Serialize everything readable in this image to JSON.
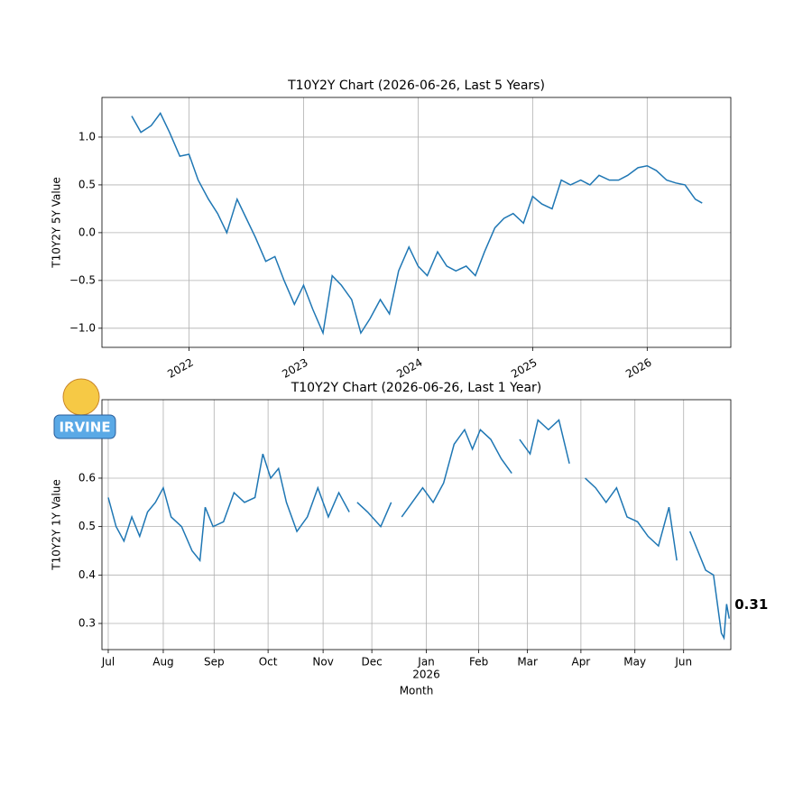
{
  "logo_text": "IRVINE",
  "chart_data": [
    {
      "type": "line",
      "title": "T10Y2Y Chart (2026-06-26, Last 5 Years)",
      "y_label": "T10Y2Y 5Y Value",
      "xlim": [
        2021.24,
        2026.73
      ],
      "xticks": [
        2022,
        2023,
        2024,
        2025,
        2026
      ],
      "ylim": [
        -1.2,
        1.415
      ],
      "yticks": [
        {
          "value": -1,
          "label": "−1.0"
        },
        {
          "value": -0.5,
          "label": "−0.5"
        },
        {
          "value": 0,
          "label": "0.0"
        },
        0.5,
        {
          "value": 1,
          "label": "1.0"
        }
      ],
      "grid": true,
      "x": [
        2021.5,
        2021.58,
        2021.67,
        2021.75,
        2021.83,
        2021.92,
        2022.0,
        2022.08,
        2022.17,
        2022.25,
        2022.33,
        2022.42,
        2022.5,
        2022.58,
        2022.67,
        2022.75,
        2022.83,
        2022.92,
        2023.0,
        2023.08,
        2023.17,
        2023.25,
        2023.33,
        2023.42,
        2023.5,
        2023.58,
        2023.67,
        2023.75,
        2023.83,
        2023.92,
        2024.0,
        2024.08,
        2024.17,
        2024.25,
        2024.33,
        2024.42,
        2024.5,
        2024.58,
        2024.67,
        2024.75,
        2024.83,
        2024.92,
        2025.0,
        2025.08,
        2025.17,
        2025.25,
        2025.33,
        2025.42,
        2025.5,
        2025.58,
        2025.67,
        2025.75,
        2025.83,
        2025.92,
        2026.0,
        2026.08,
        2026.17,
        2026.25,
        2026.33,
        2026.42,
        2026.48
      ],
      "series": [
        {
          "name": "T10Y2Y",
          "color": "#1f77b4",
          "values": [
            1.22,
            1.05,
            1.12,
            1.25,
            1.05,
            0.8,
            0.82,
            0.55,
            0.35,
            0.2,
            0.0,
            0.35,
            0.15,
            -0.05,
            -0.3,
            -0.25,
            -0.5,
            -0.75,
            -0.55,
            -0.8,
            -1.05,
            -0.45,
            -0.55,
            -0.7,
            -1.05,
            -0.9,
            -0.7,
            -0.85,
            -0.4,
            -0.15,
            -0.35,
            -0.45,
            -0.2,
            -0.35,
            -0.4,
            -0.35,
            -0.45,
            -0.2,
            0.05,
            0.15,
            0.2,
            0.1,
            0.38,
            0.3,
            0.25,
            0.55,
            0.5,
            0.55,
            0.5,
            0.6,
            0.55,
            0.55,
            0.6,
            0.68,
            0.7,
            0.65,
            0.55,
            0.52,
            0.5,
            0.35,
            0.31
          ]
        }
      ]
    },
    {
      "type": "line",
      "title": "T10Y2Y Chart (2026-06-26, Last 1 Year)",
      "y_label": "T10Y2Y 1Y Value",
      "x_label": "Month",
      "year_label": "2026",
      "xlim": [
        -0.12,
        11.88
      ],
      "xticks": [
        {
          "value": 0,
          "label": "Jul"
        },
        {
          "value": 1.05,
          "label": "Aug"
        },
        {
          "value": 2.02,
          "label": "Sep"
        },
        {
          "value": 3.05,
          "label": "Oct"
        },
        {
          "value": 4.1,
          "label": "Nov"
        },
        {
          "value": 5.03,
          "label": "Dec"
        },
        {
          "value": 6.07,
          "label": "Jan"
        },
        {
          "value": 7.07,
          "label": "Feb"
        },
        {
          "value": 8.0,
          "label": "Mar"
        },
        {
          "value": 9.02,
          "label": "Apr"
        },
        {
          "value": 10.05,
          "label": "May"
        },
        {
          "value": 10.98,
          "label": "Jun"
        }
      ],
      "ylim": [
        0.246,
        0.762
      ],
      "yticks": [
        0.3,
        0.4,
        0.5,
        0.6
      ],
      "grid": true,
      "annotation": "0.31",
      "x": [
        0,
        0.15,
        0.3,
        0.45,
        0.6,
        0.75,
        0.9,
        1.05,
        1.2,
        1.4,
        1.6,
        1.75,
        1.85,
        2.0,
        2.2,
        2.4,
        2.6,
        2.8,
        2.95,
        3.1,
        3.25,
        3.4,
        3.6,
        3.8,
        4.0,
        4.2,
        4.4,
        4.6,
        4.68,
        4.75,
        4.95,
        5.2,
        5.4,
        5.5,
        5.6,
        5.8,
        6.0,
        6.2,
        6.4,
        6.6,
        6.8,
        6.95,
        7.1,
        7.3,
        7.5,
        7.7,
        7.78,
        7.85,
        8.05,
        8.2,
        8.4,
        8.6,
        8.8,
        8.95,
        9.1,
        9.3,
        9.5,
        9.7,
        9.9,
        10.1,
        10.3,
        10.5,
        10.7,
        10.85,
        10.95,
        11.1,
        11.25,
        11.4,
        11.55,
        11.7,
        11.75,
        11.8,
        11.85
      ],
      "series": [
        {
          "name": "T10Y2Y",
          "color": "#1f77b4",
          "values": [
            0.56,
            0.5,
            0.47,
            0.52,
            0.48,
            0.53,
            0.55,
            0.58,
            0.52,
            0.5,
            0.45,
            0.43,
            0.54,
            0.5,
            0.51,
            0.57,
            0.55,
            0.56,
            0.65,
            0.6,
            0.62,
            0.55,
            0.49,
            0.52,
            0.58,
            0.52,
            0.57,
            0.53,
            null,
            0.55,
            0.53,
            0.5,
            0.55,
            null,
            0.52,
            0.55,
            0.58,
            0.55,
            0.59,
            0.67,
            0.7,
            0.66,
            0.7,
            0.68,
            0.64,
            0.61,
            null,
            0.68,
            0.65,
            0.72,
            0.7,
            0.72,
            0.63,
            null,
            0.6,
            0.58,
            0.55,
            0.58,
            0.52,
            0.51,
            0.48,
            0.46,
            0.54,
            0.43,
            null,
            0.49,
            0.45,
            0.41,
            0.4,
            0.28,
            0.27,
            0.34,
            0.31
          ]
        }
      ]
    }
  ]
}
